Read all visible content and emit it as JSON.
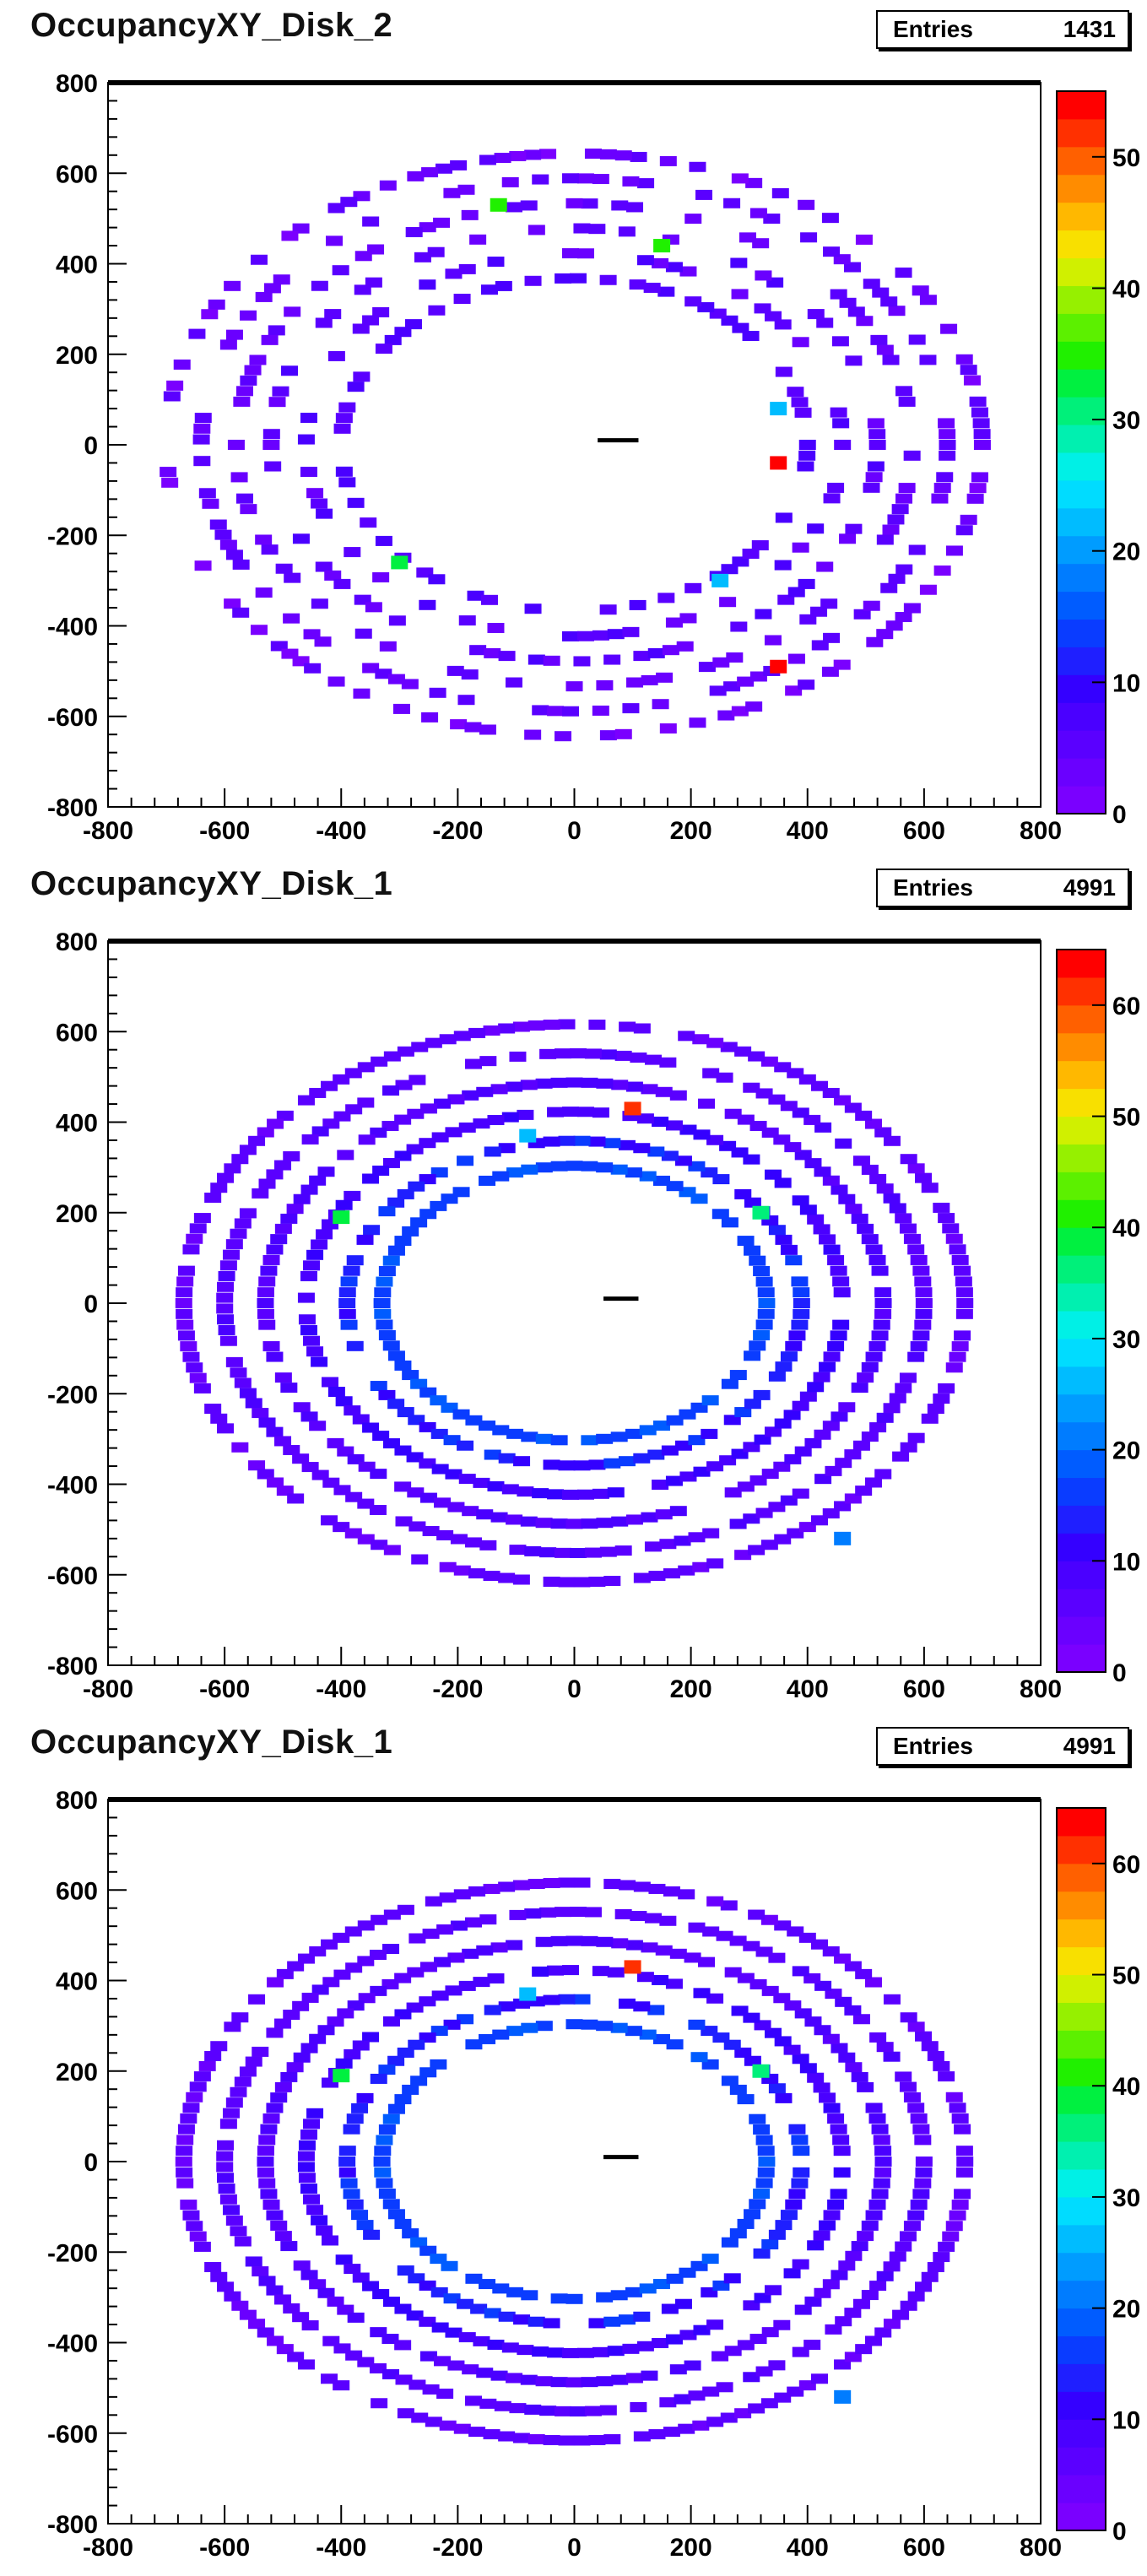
{
  "palette": [
    "#7a00ff",
    "#6a00ff",
    "#5a00ff",
    "#4a00ff",
    "#3400ff",
    "#1f1fff",
    "#0a3cff",
    "#005cff",
    "#007cff",
    "#009cff",
    "#00bcff",
    "#00dcff",
    "#00f0e6",
    "#00f0b0",
    "#00f07a",
    "#00f040",
    "#20f000",
    "#5cf000",
    "#96f000",
    "#d0f000",
    "#f8e000",
    "#ffb800",
    "#ff8c00",
    "#ff6000",
    "#ff3000",
    "#ff0000"
  ],
  "chart_data": [
    {
      "type": "heatmap",
      "title": "OccupancyXY_Disk_2",
      "entries_label": "Entries",
      "entries": "1431",
      "x_ticks": [
        "-800",
        "-600",
        "-400",
        "-200",
        "0",
        "200",
        "400",
        "600",
        "800"
      ],
      "y_ticks": [
        "800",
        "600",
        "400",
        "200",
        "0",
        "-200",
        "-400",
        "-600",
        "-800"
      ],
      "xlim": [
        -800,
        800
      ],
      "ylim": [
        -800,
        800
      ],
      "z_ticks": [
        "50",
        "40",
        "30",
        "20",
        "10",
        "0"
      ],
      "zlim": [
        0,
        55
      ],
      "rings": [
        {
          "r": 700,
          "occupancy": 0.55,
          "value": 2
        },
        {
          "r": 640,
          "occupancy": 0.5,
          "value": 3
        },
        {
          "r": 580,
          "occupancy": 0.5,
          "value": 3
        },
        {
          "r": 520,
          "occupancy": 0.45,
          "value": 4
        },
        {
          "r": 460,
          "occupancy": 0.45,
          "value": 4
        },
        {
          "r": 400,
          "occupancy": 0.5,
          "value": 5
        }
      ],
      "hot_spots": [
        {
          "x": -130,
          "y": 530,
          "value": 34
        },
        {
          "x": 150,
          "y": 440,
          "value": 34
        },
        {
          "x": 350,
          "y": -40,
          "value": 53
        },
        {
          "x": 350,
          "y": -490,
          "value": 53
        },
        {
          "x": -300,
          "y": -260,
          "value": 32
        },
        {
          "x": 350,
          "y": 80,
          "value": 22
        },
        {
          "x": 250,
          "y": -300,
          "value": 22
        }
      ],
      "marker": {
        "x1": 40,
        "x2": 110,
        "y": 10
      }
    },
    {
      "type": "heatmap",
      "title": "OccupancyXY_Disk_1",
      "entries_label": "Entries",
      "entries": "4991",
      "x_ticks": [
        "-800",
        "-600",
        "-400",
        "-200",
        "0",
        "200",
        "400",
        "600",
        "800"
      ],
      "y_ticks": [
        "800",
        "600",
        "400",
        "200",
        "0",
        "-200",
        "-400",
        "-600",
        "-800"
      ],
      "xlim": [
        -800,
        800
      ],
      "ylim": [
        -800,
        800
      ],
      "z_ticks": [
        "60",
        "50",
        "40",
        "30",
        "20",
        "10",
        "0"
      ],
      "zlim": [
        0,
        65
      ],
      "rings": [
        {
          "r": 670,
          "occupancy": 0.88,
          "value": 4
        },
        {
          "r": 600,
          "occupancy": 0.88,
          "value": 5
        },
        {
          "r": 530,
          "occupancy": 0.88,
          "value": 6
        },
        {
          "r": 460,
          "occupancy": 0.88,
          "value": 8
        },
        {
          "r": 390,
          "occupancy": 0.85,
          "value": 12
        },
        {
          "r": 330,
          "occupancy": 0.85,
          "value": 15
        }
      ],
      "hot_spots": [
        {
          "x": 100,
          "y": 430,
          "value": 62
        },
        {
          "x": -400,
          "y": 190,
          "value": 38
        },
        {
          "x": 320,
          "y": 200,
          "value": 36
        },
        {
          "x": -80,
          "y": 370,
          "value": 25
        },
        {
          "x": 460,
          "y": -520,
          "value": 22
        }
      ],
      "marker": {
        "x1": 50,
        "x2": 110,
        "y": 10
      }
    },
    {
      "type": "heatmap",
      "title": "OccupancyXY_Disk_1",
      "entries_label": "Entries",
      "entries": "4991",
      "x_ticks": [
        "-800",
        "-600",
        "-400",
        "-200",
        "0",
        "200",
        "400",
        "600",
        "800"
      ],
      "y_ticks": [
        "800",
        "600",
        "400",
        "200",
        "0",
        "-200",
        "-400",
        "-600",
        "-800"
      ],
      "xlim": [
        -800,
        800
      ],
      "ylim": [
        -800,
        800
      ],
      "z_ticks": [
        "60",
        "50",
        "40",
        "30",
        "20",
        "10",
        "0"
      ],
      "zlim": [
        0,
        65
      ],
      "rings": [
        {
          "r": 670,
          "occupancy": 0.88,
          "value": 4
        },
        {
          "r": 600,
          "occupancy": 0.88,
          "value": 5
        },
        {
          "r": 530,
          "occupancy": 0.88,
          "value": 6
        },
        {
          "r": 460,
          "occupancy": 0.88,
          "value": 8
        },
        {
          "r": 390,
          "occupancy": 0.85,
          "value": 12
        },
        {
          "r": 330,
          "occupancy": 0.85,
          "value": 15
        }
      ],
      "hot_spots": [
        {
          "x": 100,
          "y": 430,
          "value": 62
        },
        {
          "x": -400,
          "y": 190,
          "value": 38
        },
        {
          "x": 320,
          "y": 200,
          "value": 36
        },
        {
          "x": -80,
          "y": 370,
          "value": 25
        },
        {
          "x": 460,
          "y": -520,
          "value": 22
        }
      ],
      "marker": {
        "x1": 50,
        "x2": 110,
        "y": 10
      }
    }
  ]
}
